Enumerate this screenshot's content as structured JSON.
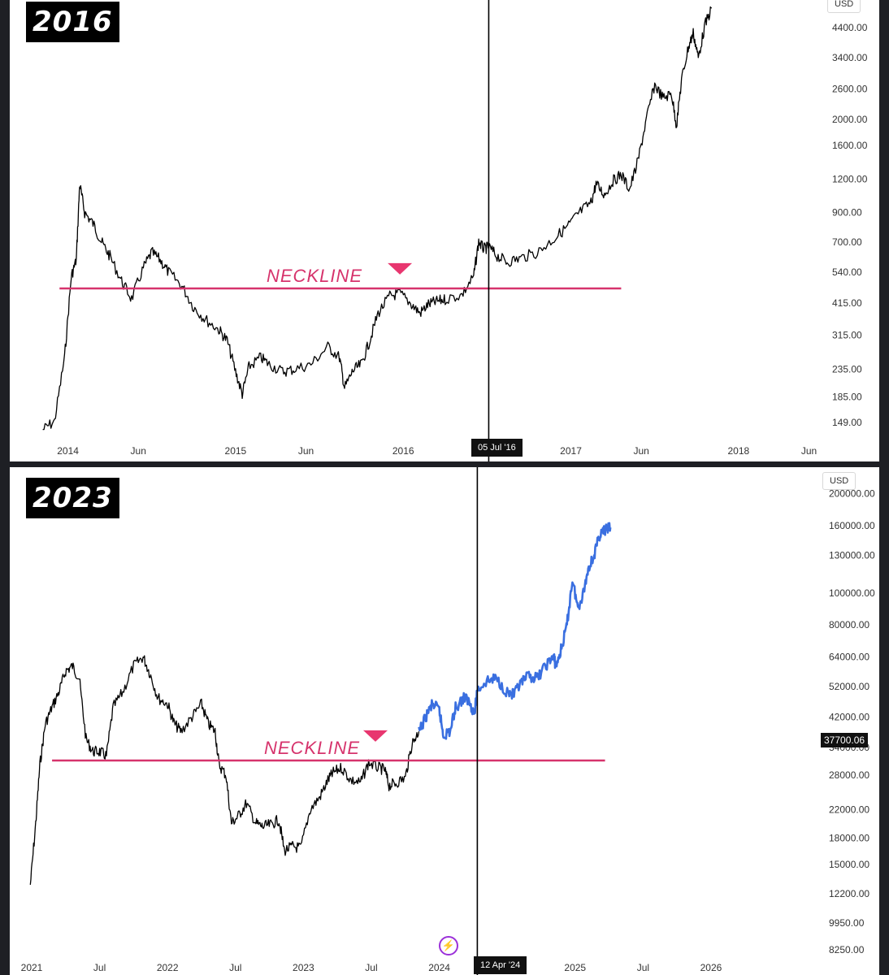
{
  "chart_data": [
    {
      "type": "line",
      "title": "2016",
      "unit": "USD",
      "scale": "log",
      "ylim": [
        125,
        5500
      ],
      "y_ticks": [
        "4400.00",
        "3400.00",
        "2600.00",
        "2000.00",
        "1600.00",
        "1200.00",
        "900.00",
        "700.00",
        "540.00",
        "415.00",
        "315.00",
        "235.00",
        "185.00",
        "149.00"
      ],
      "x_range": [
        2013.75,
        2018.5
      ],
      "x_ticks": [
        {
          "label": "2014",
          "x": 2014.0
        },
        {
          "label": "Jun",
          "x": 2014.42
        },
        {
          "label": "2015",
          "x": 2015.0
        },
        {
          "label": "Jun",
          "x": 2015.42
        },
        {
          "label": "2016",
          "x": 2016.0
        },
        {
          "label": "2017",
          "x": 2017.0
        },
        {
          "label": "Jun",
          "x": 2017.42
        },
        {
          "label": "2018",
          "x": 2018.0
        },
        {
          "label": "Jun",
          "x": 2018.42
        }
      ],
      "neckline": {
        "label": "NECKLINE",
        "value": 470,
        "x_start": 2013.95,
        "x_end": 2017.3
      },
      "marker": {
        "x": 2015.98,
        "value": 560
      },
      "crosshair": {
        "label": "05 Jul '16",
        "x": 2016.51
      },
      "series": [
        {
          "color": "#000000",
          "points": [
            [
              2013.85,
              140
            ],
            [
              2013.92,
              150
            ],
            [
              2013.98,
              260
            ],
            [
              2014.02,
              520
            ],
            [
              2014.05,
              600
            ],
            [
              2014.07,
              1150
            ],
            [
              2014.1,
              900
            ],
            [
              2014.15,
              820
            ],
            [
              2014.2,
              700
            ],
            [
              2014.25,
              620
            ],
            [
              2014.32,
              500
            ],
            [
              2014.38,
              430
            ],
            [
              2014.45,
              560
            ],
            [
              2014.5,
              640
            ],
            [
              2014.55,
              600
            ],
            [
              2014.6,
              540
            ],
            [
              2014.68,
              480
            ],
            [
              2014.75,
              400
            ],
            [
              2014.82,
              360
            ],
            [
              2014.9,
              330
            ],
            [
              2014.95,
              300
            ],
            [
              2015.0,
              230
            ],
            [
              2015.04,
              190
            ],
            [
              2015.08,
              240
            ],
            [
              2015.15,
              260
            ],
            [
              2015.2,
              245
            ],
            [
              2015.28,
              230
            ],
            [
              2015.35,
              235
            ],
            [
              2015.45,
              245
            ],
            [
              2015.55,
              285
            ],
            [
              2015.62,
              260
            ],
            [
              2015.65,
              200
            ],
            [
              2015.7,
              232
            ],
            [
              2015.75,
              245
            ],
            [
              2015.8,
              300
            ],
            [
              2015.85,
              380
            ],
            [
              2015.92,
              440
            ],
            [
              2015.98,
              450
            ],
            [
              2016.05,
              410
            ],
            [
              2016.1,
              380
            ],
            [
              2016.15,
              410
            ],
            [
              2016.2,
              420
            ],
            [
              2016.25,
              428
            ],
            [
              2016.35,
              445
            ],
            [
              2016.42,
              520
            ],
            [
              2016.45,
              700
            ],
            [
              2016.48,
              660
            ],
            [
              2016.51,
              670
            ],
            [
              2016.56,
              620
            ],
            [
              2016.62,
              590
            ],
            [
              2016.7,
              610
            ],
            [
              2016.8,
              640
            ],
            [
              2016.9,
              720
            ],
            [
              2016.98,
              800
            ],
            [
              2017.05,
              900
            ],
            [
              2017.12,
              980
            ],
            [
              2017.15,
              1150
            ],
            [
              2017.2,
              1050
            ],
            [
              2017.25,
              1180
            ],
            [
              2017.3,
              1250
            ],
            [
              2017.35,
              1100
            ],
            [
              2017.4,
              1400
            ],
            [
              2017.45,
              2000
            ],
            [
              2017.5,
              2700
            ],
            [
              2017.55,
              2400
            ],
            [
              2017.6,
              2500
            ],
            [
              2017.63,
              1900
            ],
            [
              2017.66,
              2800
            ],
            [
              2017.7,
              3700
            ],
            [
              2017.73,
              4200
            ],
            [
              2017.76,
              3400
            ],
            [
              2017.8,
              4500
            ],
            [
              2017.84,
              5200
            ]
          ]
        }
      ]
    },
    {
      "type": "line",
      "title": "2023",
      "unit": "USD",
      "scale": "log",
      "ylim": [
        7800,
        215000
      ],
      "y_ticks": [
        "200000.00",
        "160000.00",
        "130000.00",
        "100000.00",
        "80000.00",
        "64000.00",
        "52000.00",
        "42000.00",
        "34000.00",
        "28000.00",
        "22000.00",
        "18000.00",
        "15000.00",
        "12200.00",
        "9950.00",
        "8250.00"
      ],
      "price_label": {
        "text": "37700.06",
        "value": 37700.06
      },
      "x_range": [
        2021.0,
        2026.7
      ],
      "x_ticks": [
        {
          "label": "2021",
          "x": 2021.0
        },
        {
          "label": "Jul",
          "x": 2021.5
        },
        {
          "label": "2022",
          "x": 2022.0
        },
        {
          "label": "Jul",
          "x": 2022.5
        },
        {
          "label": "2023",
          "x": 2023.0
        },
        {
          "label": "Jul",
          "x": 2023.5
        },
        {
          "label": "2024",
          "x": 2024.0
        },
        {
          "label": "2025",
          "x": 2025.0
        },
        {
          "label": "Jul",
          "x": 2025.5
        },
        {
          "label": "2026",
          "x": 2026.0
        }
      ],
      "neckline": {
        "label": "NECKLINE",
        "value": 31000,
        "x_start": 2021.15,
        "x_end": 2025.22
      },
      "marker": {
        "x": 2023.53,
        "value": 37000
      },
      "crosshair": {
        "label": "12 Apr '24",
        "x": 2024.28
      },
      "series": [
        {
          "color": "#000000",
          "points": [
            [
              2020.99,
              13000
            ],
            [
              2021.03,
              20000
            ],
            [
              2021.06,
              30000
            ],
            [
              2021.1,
              40000
            ],
            [
              2021.15,
              45000
            ],
            [
              2021.2,
              50000
            ],
            [
              2021.25,
              58000
            ],
            [
              2021.3,
              60000
            ],
            [
              2021.35,
              55000
            ],
            [
              2021.4,
              36000
            ],
            [
              2021.45,
              33000
            ],
            [
              2021.5,
              33000
            ],
            [
              2021.55,
              32000
            ],
            [
              2021.6,
              45000
            ],
            [
              2021.67,
              50000
            ],
            [
              2021.75,
              60000
            ],
            [
              2021.82,
              64000
            ],
            [
              2021.87,
              57000
            ],
            [
              2021.93,
              48000
            ],
            [
              2022.0,
              46000
            ],
            [
              2022.05,
              40000
            ],
            [
              2022.1,
              38000
            ],
            [
              2022.18,
              42000
            ],
            [
              2022.25,
              46000
            ],
            [
              2022.3,
              40000
            ],
            [
              2022.35,
              38000
            ],
            [
              2022.38,
              30000
            ],
            [
              2022.43,
              28000
            ],
            [
              2022.47,
              20000
            ],
            [
              2022.52,
              21000
            ],
            [
              2022.58,
              23000
            ],
            [
              2022.65,
              20000
            ],
            [
              2022.7,
              19500
            ],
            [
              2022.76,
              19800
            ],
            [
              2022.82,
              20500
            ],
            [
              2022.86,
              16500
            ],
            [
              2022.92,
              17000
            ],
            [
              2022.98,
              16800
            ],
            [
              2023.05,
              22000
            ],
            [
              2023.12,
              24000
            ],
            [
              2023.18,
              27000
            ],
            [
              2023.22,
              28500
            ],
            [
              2023.28,
              29500
            ],
            [
              2023.35,
              27000
            ],
            [
              2023.42,
              26500
            ],
            [
              2023.48,
              30500
            ],
            [
              2023.55,
              29500
            ],
            [
              2023.6,
              29000
            ],
            [
              2023.63,
              26000
            ],
            [
              2023.68,
              26500
            ],
            [
              2023.75,
              27500
            ],
            [
              2023.8,
              35000
            ],
            [
              2023.85,
              38000
            ]
          ]
        },
        {
          "color": "#3a6fe0",
          "points": [
            [
              2023.85,
              37700
            ],
            [
              2023.9,
              42000
            ],
            [
              2023.95,
              46000
            ],
            [
              2024.0,
              44000
            ],
            [
              2024.03,
              37000
            ],
            [
              2024.08,
              38000
            ],
            [
              2024.12,
              45000
            ],
            [
              2024.18,
              48000
            ],
            [
              2024.22,
              47000
            ],
            [
              2024.26,
              43000
            ],
            [
              2024.28,
              51000
            ],
            [
              2024.35,
              54000
            ],
            [
              2024.42,
              55000
            ],
            [
              2024.5,
              50000
            ],
            [
              2024.55,
              49000
            ],
            [
              2024.6,
              53000
            ],
            [
              2024.66,
              56000
            ],
            [
              2024.72,
              55000
            ],
            [
              2024.78,
              60000
            ],
            [
              2024.84,
              64000
            ],
            [
              2024.86,
              60000
            ],
            [
              2024.9,
              68000
            ],
            [
              2024.94,
              80000
            ],
            [
              2024.98,
              110000
            ],
            [
              2025.02,
              90000
            ],
            [
              2025.06,
              100000
            ],
            [
              2025.1,
              120000
            ],
            [
              2025.14,
              130000
            ],
            [
              2025.18,
              150000
            ],
            [
              2025.22,
              155000
            ],
            [
              2025.26,
              158000
            ]
          ]
        }
      ]
    }
  ],
  "panels": {
    "top": {
      "year": "2016",
      "unit": "USD",
      "neckline_label": "NECKLINE",
      "date_tag": "05 Jul '16"
    },
    "bottom": {
      "year": "2023",
      "unit": "USD",
      "neckline_label": "NECKLINE",
      "date_tag": "12 Apr '24",
      "price_tag": "37700.06",
      "lightning": "⚡"
    }
  }
}
